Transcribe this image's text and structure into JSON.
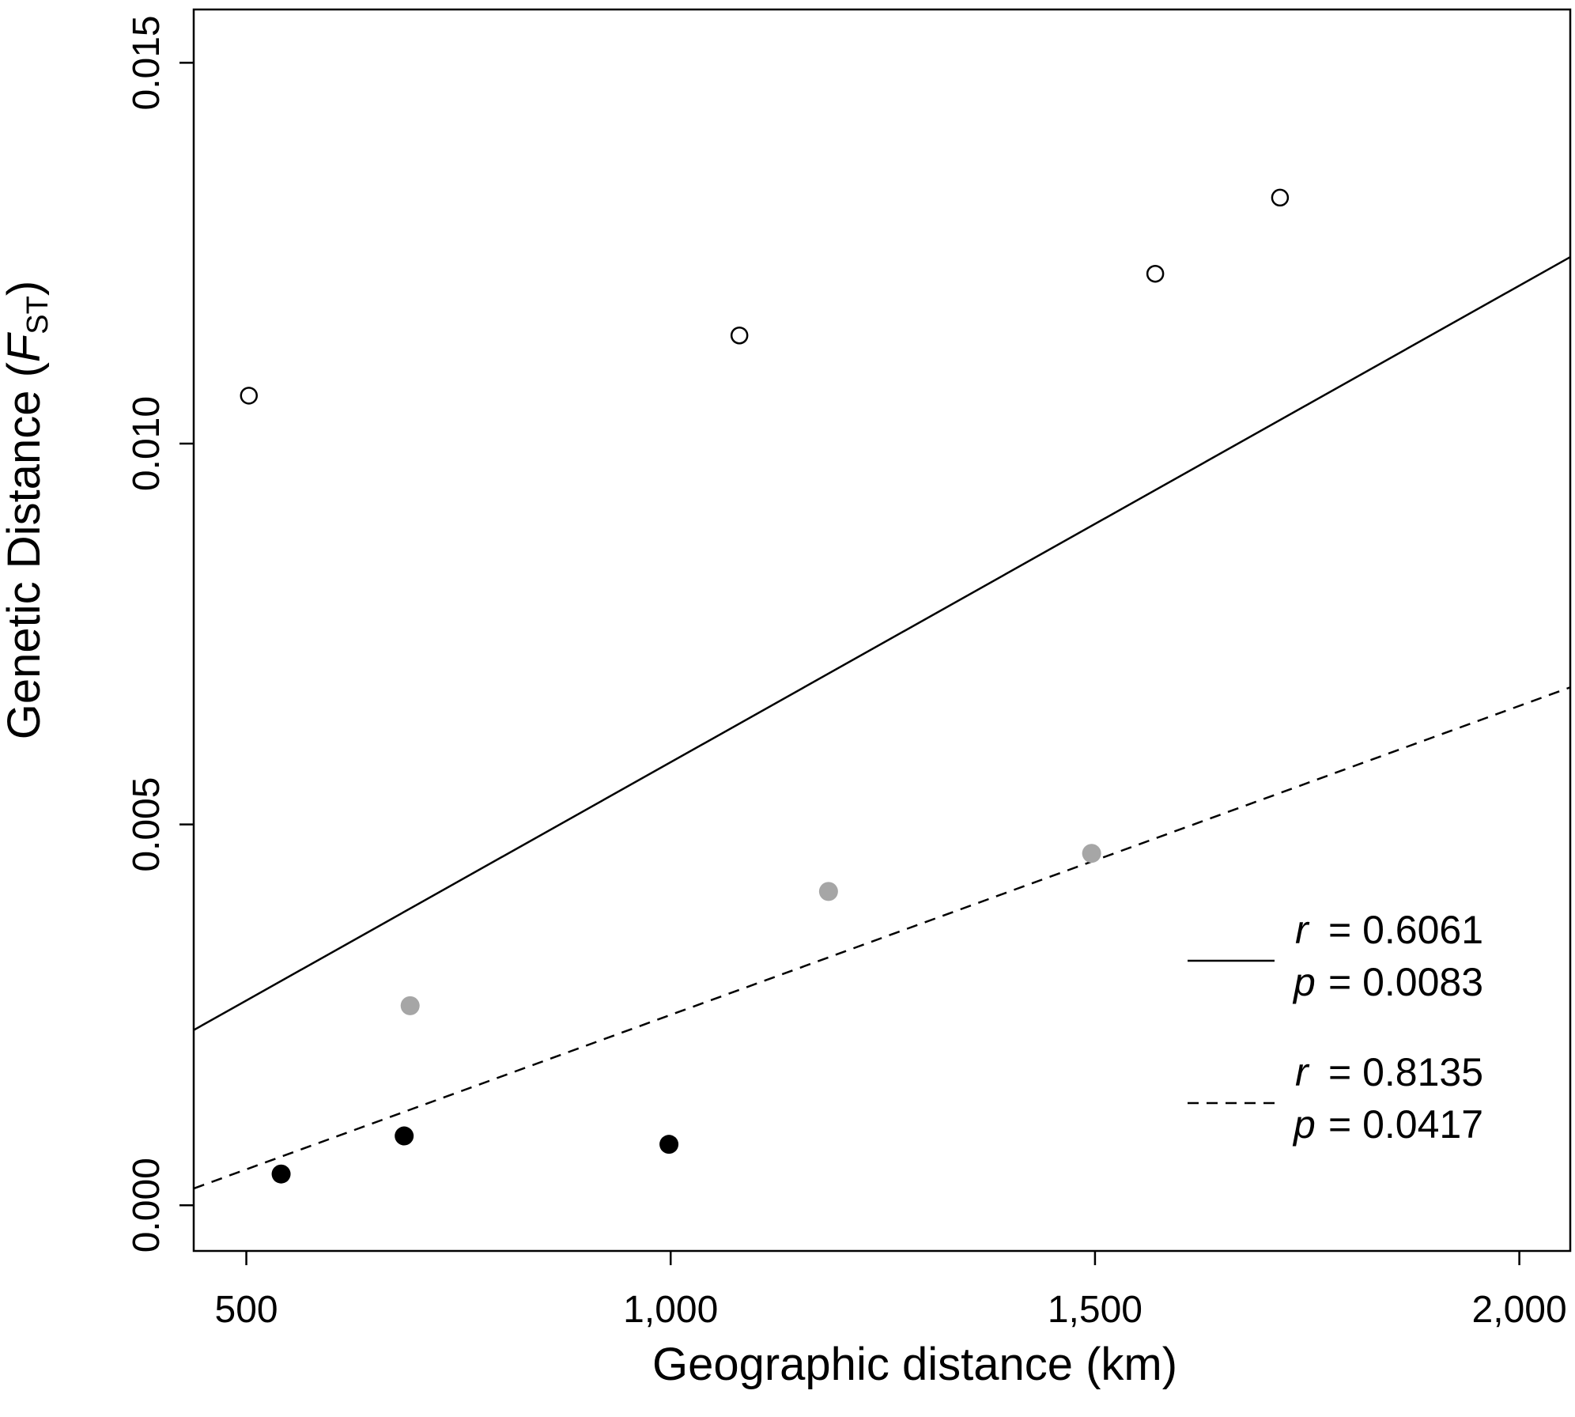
{
  "chart_data": {
    "type": "scatter",
    "xlabel": "Geographic distance (km)",
    "ylabel": {
      "main": "Genetic Distance (",
      "italic": "F",
      "sub": "ST",
      "close": ")"
    },
    "xlim": [
      438,
      2060
    ],
    "ylim": [
      -0.0006,
      0.0157
    ],
    "x_ticks": [
      500,
      1000,
      1500,
      2000
    ],
    "x_tick_labels": [
      "500",
      "1,000",
      "1,500",
      "2,000"
    ],
    "y_ticks": [
      0.0,
      0.005,
      0.01,
      0.015
    ],
    "y_tick_labels": [
      "0.000",
      "0.005",
      "0.010",
      "0.015"
    ],
    "grid": false,
    "series": [
      {
        "style": "open",
        "color": "#000000",
        "points": [
          {
            "x": 503,
            "y": 0.01063
          },
          {
            "x": 1081,
            "y": 0.01142
          },
          {
            "x": 1571,
            "y": 0.01223
          },
          {
            "x": 1718,
            "y": 0.01323
          }
        ]
      },
      {
        "style": "filled",
        "color": "#a6a6a6",
        "points": [
          {
            "x": 693,
            "y": 0.00262
          },
          {
            "x": 1186,
            "y": 0.00412
          },
          {
            "x": 1496,
            "y": 0.00462
          }
        ]
      },
      {
        "style": "filled",
        "color": "#000000",
        "points": [
          {
            "x": 541,
            "y": 0.00041
          },
          {
            "x": 686,
            "y": 0.00091
          },
          {
            "x": 998,
            "y": 0.0008
          }
        ]
      }
    ],
    "lines": [
      {
        "dash": "solid",
        "x": [
          438,
          2060
        ],
        "y": [
          0.0023,
          0.01245
        ]
      },
      {
        "dash": "dashed",
        "x": [
          438,
          2060
        ],
        "y": [
          0.00022,
          0.0068
        ]
      }
    ],
    "legend": {
      "placement": "bottom-right",
      "entries": [
        {
          "dash": "solid",
          "r_sym": "r",
          "r_val": "= 0.6061",
          "p_sym": "p",
          "p_val": "= 0.0083"
        },
        {
          "dash": "dashed",
          "r_sym": "r",
          "r_val": "= 0.8135",
          "p_sym": "p",
          "p_val": "= 0.0417"
        }
      ]
    }
  }
}
